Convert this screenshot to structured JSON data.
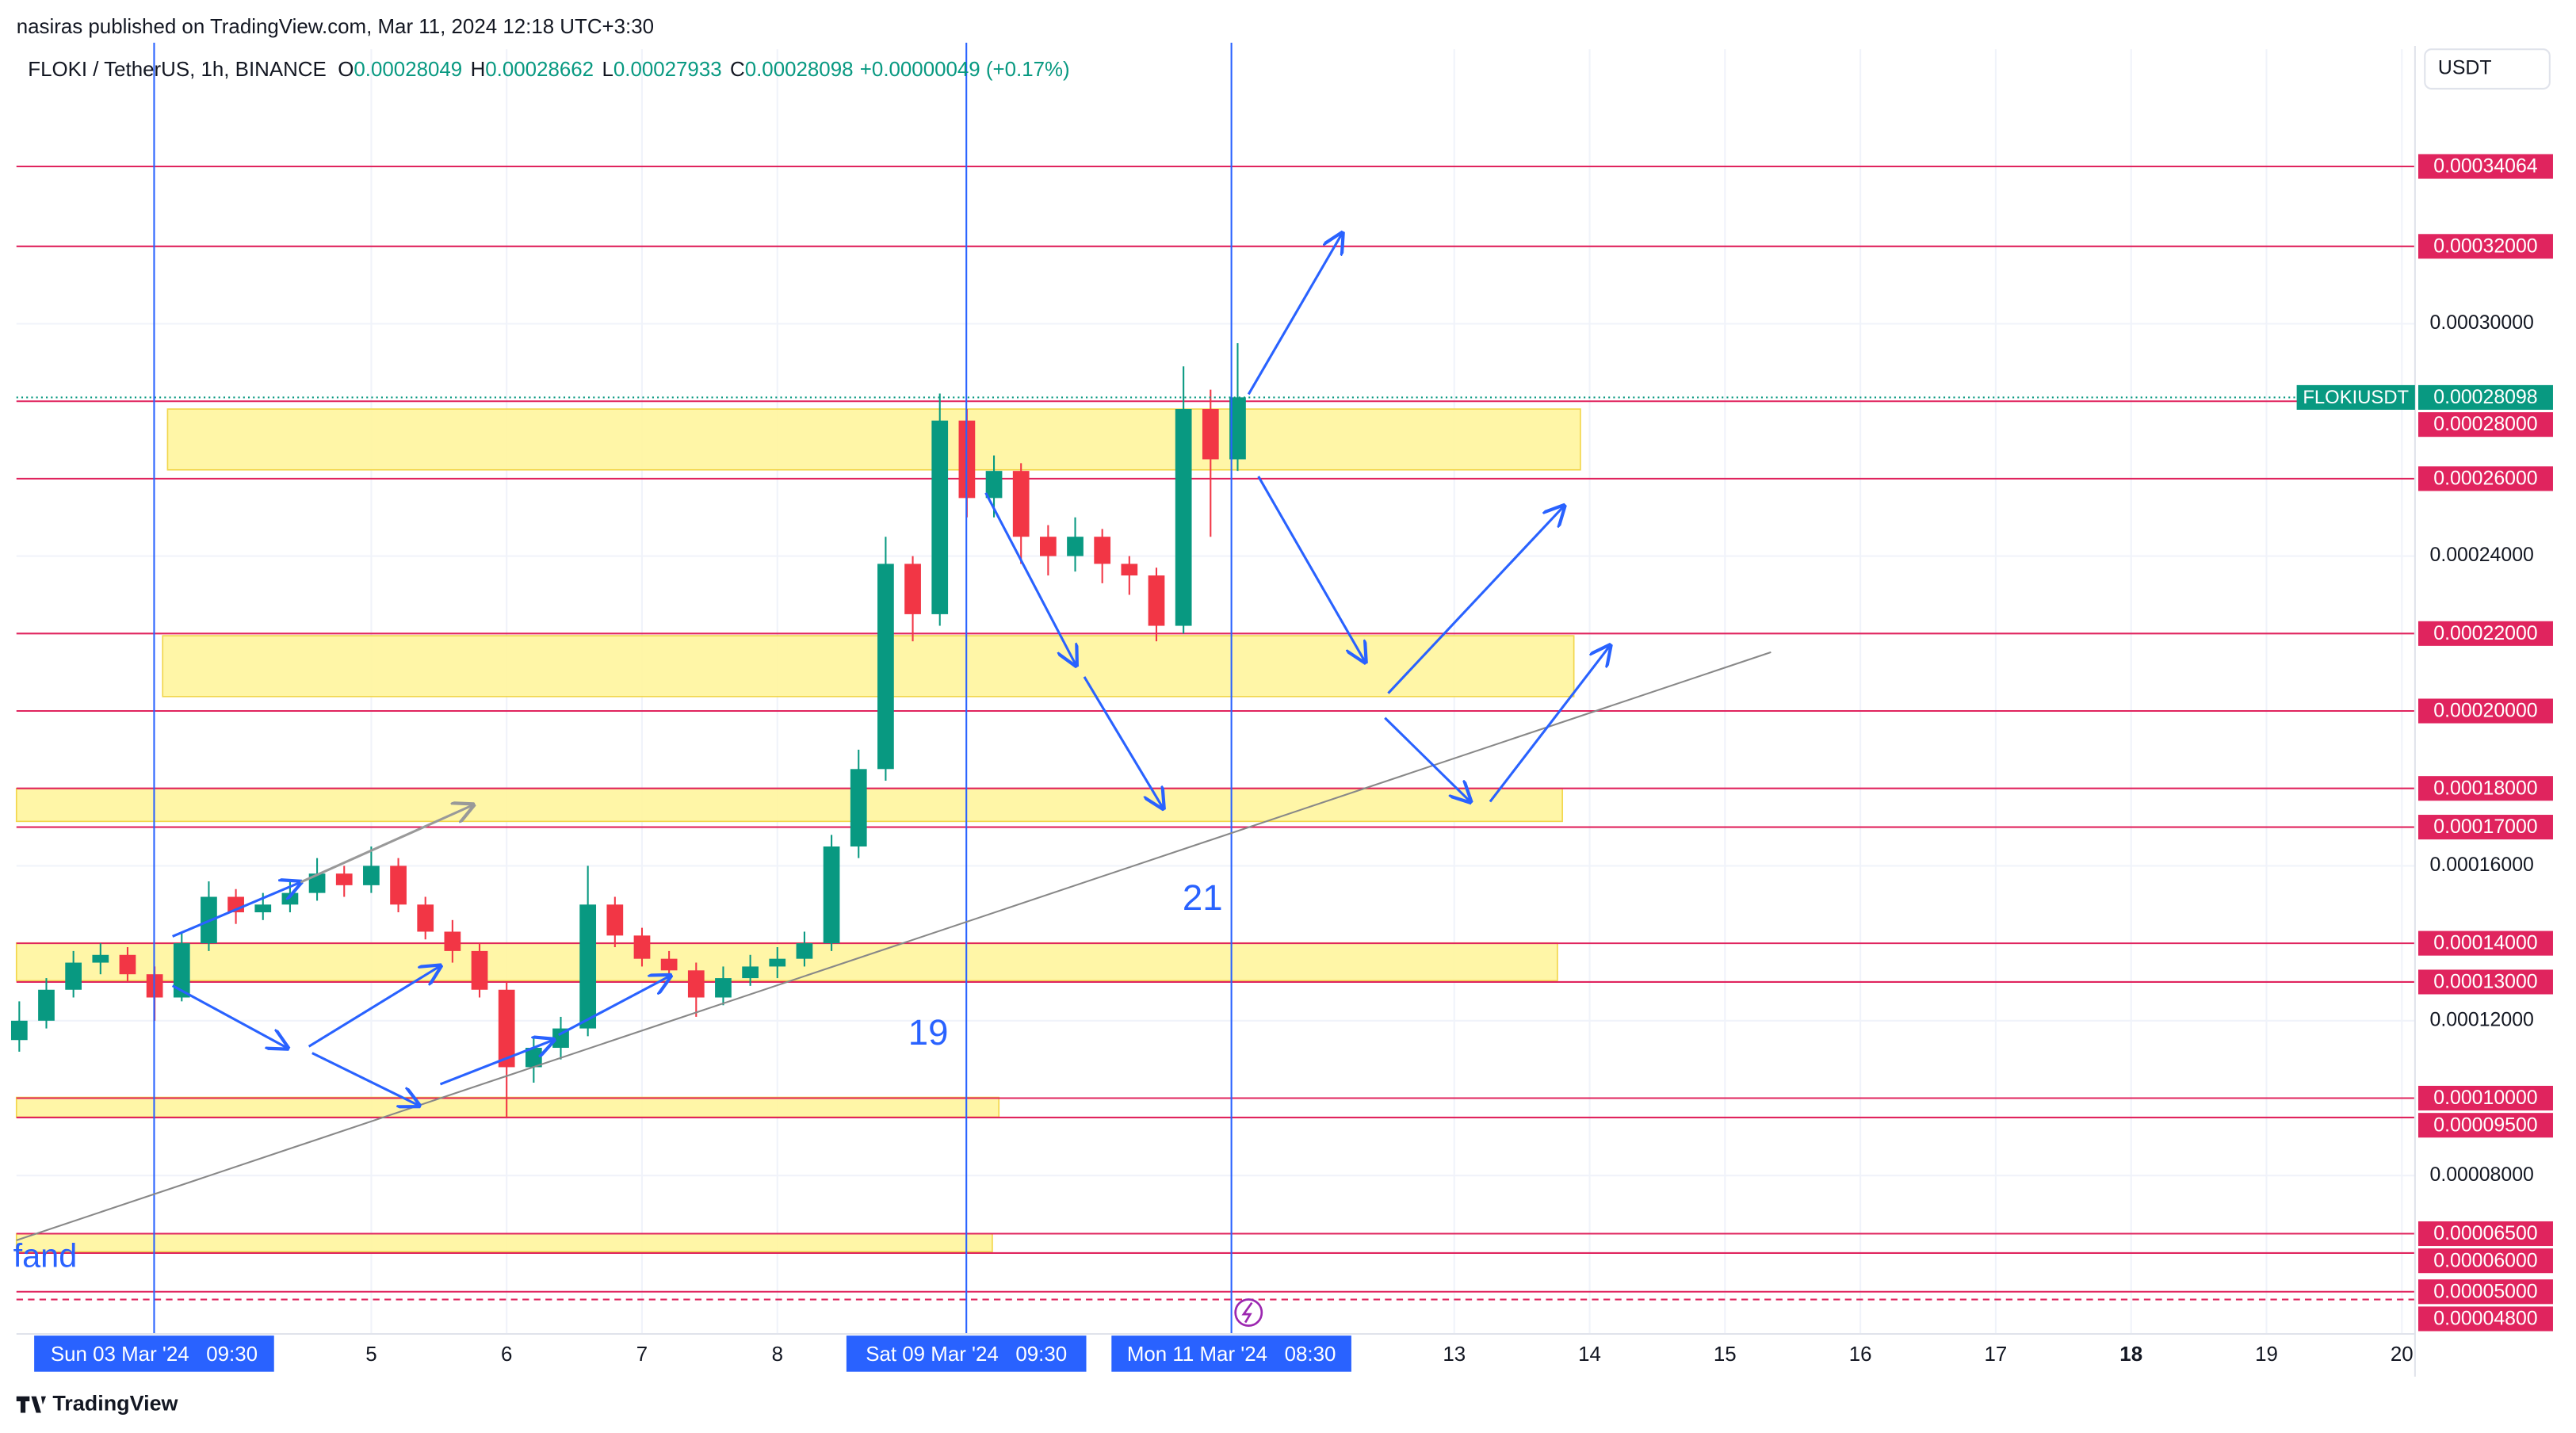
{
  "header": {
    "publisher": "nasiras published on TradingView.com, Mar 11, 2024 12:18 UTC+3:30",
    "currency_button": "USDT",
    "logo": "TradingView"
  },
  "chart_data": {
    "type": "candlestick",
    "title": "FLOKI / TetherUS, 1h, BINANCE",
    "legend": [
      {
        "key": "O",
        "value": 0.00028049
      },
      {
        "key": "H",
        "value": 0.00028662
      },
      {
        "key": "L",
        "value": 0.00027933
      },
      {
        "key": "C",
        "value": 0.00028098
      }
    ],
    "change": "+0.00000049 (+0.17%)",
    "x": [
      2.4,
      2.6,
      2.8,
      3.0,
      3.2,
      3.4,
      3.6,
      3.8,
      4.0,
      4.2,
      4.4,
      4.6,
      4.8,
      5.0,
      5.2,
      5.4,
      5.6,
      5.8,
      6.0,
      6.2,
      6.4,
      6.6,
      6.8,
      7.0,
      7.2,
      7.4,
      7.6,
      7.8,
      8.0,
      8.2,
      8.4,
      8.6,
      8.8,
      9.0,
      9.2,
      9.4,
      9.6,
      9.8,
      10.0,
      10.2,
      10.4,
      10.6,
      10.8,
      11.0,
      11.2,
      11.4
    ],
    "open": [
      0.000115,
      0.00012,
      0.000128,
      0.000135,
      0.000137,
      0.000132,
      0.000126,
      0.00014,
      0.000152,
      0.000148,
      0.00015,
      0.000153,
      0.000158,
      0.000155,
      0.00016,
      0.00015,
      0.000143,
      0.000138,
      0.000128,
      0.000108,
      0.000113,
      0.000118,
      0.00015,
      0.000142,
      0.000136,
      0.000133,
      0.000126,
      0.000131,
      0.000134,
      0.000136,
      0.00014,
      0.000165,
      0.000185,
      0.000238,
      0.000225,
      0.000275,
      0.000255,
      0.000262,
      0.000245,
      0.00024,
      0.000245,
      0.000238,
      0.000235,
      0.000222,
      0.000278,
      0.000265
    ],
    "high": [
      0.000125,
      0.000131,
      0.000138,
      0.00014,
      0.000139,
      0.000134,
      0.000143,
      0.000156,
      0.000154,
      0.000153,
      0.000156,
      0.000162,
      0.00016,
      0.000165,
      0.000162,
      0.000152,
      0.000146,
      0.00014,
      0.00013,
      0.000116,
      0.000121,
      0.00016,
      0.000152,
      0.000144,
      0.000138,
      0.000135,
      0.000134,
      0.000137,
      0.000139,
      0.000143,
      0.000168,
      0.00019,
      0.000245,
      0.00024,
      0.000282,
      0.000278,
      0.000266,
      0.000264,
      0.000248,
      0.00025,
      0.000247,
      0.00024,
      0.000237,
      0.000289,
      0.000283,
      0.000295
    ],
    "low": [
      0.000112,
      0.000118,
      0.000126,
      0.000132,
      0.00013,
      0.00012,
      0.000125,
      0.000138,
      0.000145,
      0.000146,
      0.000148,
      0.000151,
      0.000152,
      0.000153,
      0.000148,
      0.000141,
      0.000135,
      0.000126,
      9.5e-05,
      0.000104,
      0.00011,
      0.000116,
      0.000139,
      0.000134,
      0.000131,
      0.000121,
      0.000124,
      0.000129,
      0.000131,
      0.000134,
      0.000138,
      0.000162,
      0.000182,
      0.000218,
      0.000222,
      0.00025,
      0.00025,
      0.000238,
      0.000235,
      0.000236,
      0.000233,
      0.00023,
      0.000218,
      0.00022,
      0.000245,
      0.000262
    ],
    "close": [
      0.00012,
      0.000128,
      0.000135,
      0.000137,
      0.000132,
      0.000126,
      0.00014,
      0.000152,
      0.000148,
      0.00015,
      0.000153,
      0.000158,
      0.000155,
      0.00016,
      0.00015,
      0.000143,
      0.000138,
      0.000128,
      0.000108,
      0.000113,
      0.000118,
      0.00015,
      0.000142,
      0.000136,
      0.000133,
      0.000126,
      0.000131,
      0.000134,
      0.000136,
      0.00014,
      0.000165,
      0.000185,
      0.000238,
      0.000225,
      0.000275,
      0.000255,
      0.000262,
      0.000245,
      0.00024,
      0.000245,
      0.000238,
      0.000235,
      0.000222,
      0.000278,
      0.000265,
      0.000281
    ],
    "up_color": "#089981",
    "down_color": "#f23645",
    "xlim": [
      2.379,
      20.097
    ],
    "ylim": [
      3.91e-05,
      0.0003709
    ],
    "xticks": [
      {
        "value": 5,
        "label": "5"
      },
      {
        "value": 6,
        "label": "6"
      },
      {
        "value": 7,
        "label": "7"
      },
      {
        "value": 8,
        "label": "8"
      },
      {
        "value": 13,
        "label": "13"
      },
      {
        "value": 14,
        "label": "14"
      },
      {
        "value": 15,
        "label": "15"
      },
      {
        "value": 16,
        "label": "16"
      },
      {
        "value": 17,
        "label": "17"
      },
      {
        "value": 18,
        "label": "18"
      },
      {
        "value": 19,
        "label": "19"
      },
      {
        "value": 20,
        "label": "20"
      }
    ],
    "xmarkers": [
      {
        "value": 3.396,
        "label": "Sun 03 Mar '24   09:30"
      },
      {
        "value": 9.396,
        "label": "Sat 09 Mar '24   09:30"
      },
      {
        "value": 11.354,
        "label": "Mon 11 Mar '24   08:30"
      }
    ],
    "yticks": [
      {
        "value": 0.0003,
        "label": "0.00030000"
      },
      {
        "value": 0.00024,
        "label": "0.00024000"
      },
      {
        "value": 0.00016,
        "label": "0.00016000"
      },
      {
        "value": 0.00012,
        "label": "0.00012000"
      },
      {
        "value": 8e-05,
        "label": "0.00008000"
      }
    ],
    "level_color": "#e0245e",
    "levels": [
      {
        "value": 0.00034064,
        "label": "0.00034064"
      },
      {
        "value": 0.00032,
        "label": "0.00032000"
      },
      {
        "value": 0.00028,
        "label": "0.00028000"
      },
      {
        "value": 0.00026,
        "label": "0.00026000"
      },
      {
        "value": 0.00022,
        "label": "0.00022000"
      },
      {
        "value": 0.0002,
        "label": "0.00020000"
      },
      {
        "value": 0.00018,
        "label": "0.00018000"
      },
      {
        "value": 0.00017,
        "label": "0.00017000"
      },
      {
        "value": 0.00014,
        "label": "0.00014000"
      },
      {
        "value": 0.00013,
        "label": "0.00013000"
      },
      {
        "value": 0.0001,
        "label": "0.00010000"
      },
      {
        "value": 9.5e-05,
        "label": "0.00009500"
      },
      {
        "value": 6.5e-05,
        "label": "0.00006500"
      },
      {
        "value": 6e-05,
        "label": "0.00006000"
      },
      {
        "value": 5e-05,
        "label": "0.00005000"
      },
      {
        "value": 4.8e-05,
        "label": "0.00004800"
      }
    ],
    "current": {
      "symbol": "FLOKIUSDT",
      "value": 0.00028098,
      "color": "#089981"
    },
    "annotations": [
      "19",
      "21",
      "fand"
    ]
  }
}
